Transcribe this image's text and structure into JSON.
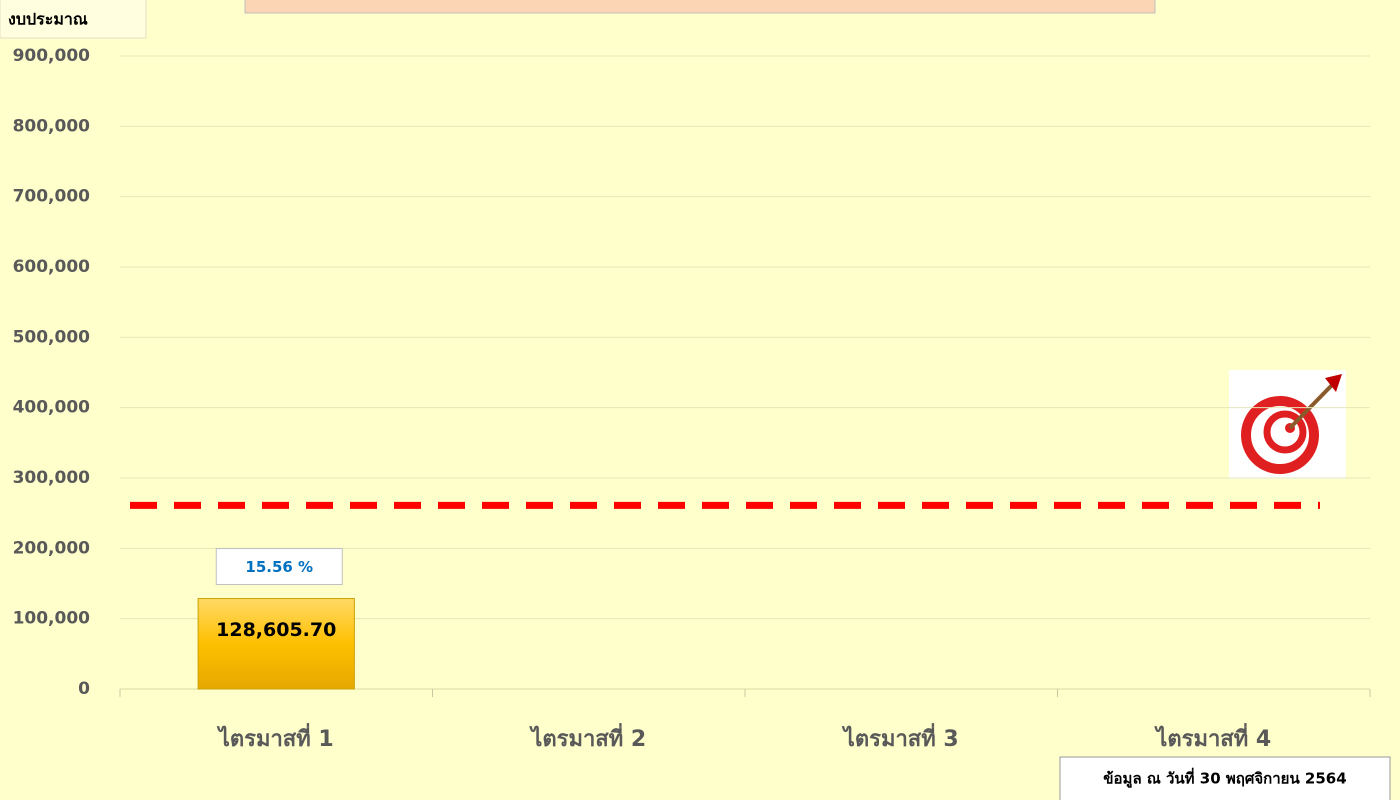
{
  "chart_data": {
    "type": "bar",
    "y_axis_label": "งบประมาณ",
    "categories": [
      "ไตรมาสที่ 1",
      "ไตรมาสที่ 2",
      "ไตรมาสที่ 3",
      "ไตรมาสที่ 4"
    ],
    "values": [
      128605.7,
      null,
      null,
      null
    ],
    "value_labels": [
      "128,605.70",
      null,
      null,
      null
    ],
    "color": "#ffc000",
    "target": {
      "value": 261000,
      "color": "#ff0000"
    },
    "annotation": "15.56 %",
    "footnote": "ข้อมูล ณ วันที่ 30 พฤศจิกายน 2564",
    "ylim": [
      0,
      900000
    ],
    "yticks": [
      0,
      {
        "value": 100000,
        "label": "100,000"
      },
      {
        "value": 200000,
        "label": "200,000"
      },
      {
        "value": 300000,
        "label": "300,000"
      },
      {
        "value": 400000,
        "label": "400,000"
      },
      {
        "value": 500000,
        "label": "500,000"
      },
      {
        "value": 600000,
        "label": "600,000"
      },
      {
        "value": 700000,
        "label": "700,000"
      },
      {
        "value": 800000,
        "label": "800,000"
      },
      {
        "value": 900000,
        "label": "900,000"
      }
    ],
    "grid": true
  }
}
